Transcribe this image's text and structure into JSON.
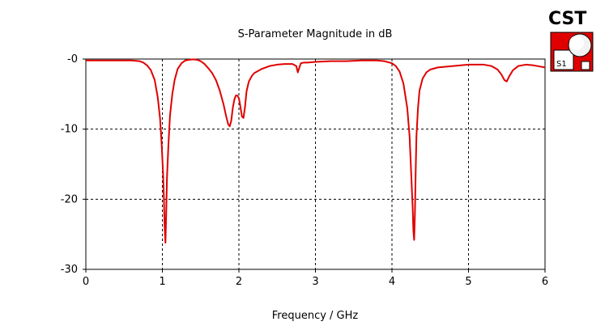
{
  "chart_data": {
    "type": "line",
    "title": "S-Parameter Magnitude in dB",
    "xlabel": "Frequency / GHz",
    "ylabel": "",
    "xlim": [
      0,
      6
    ],
    "ylim": [
      -30,
      0
    ],
    "grid": true,
    "x_ticks": [
      0,
      1,
      2,
      3,
      4,
      5,
      6
    ],
    "x_tick_labels": [
      "0",
      "1",
      "2",
      "3",
      "4",
      "5",
      "6"
    ],
    "y_ticks": [
      0,
      -10,
      -20,
      -30
    ],
    "y_tick_labels": [
      "-0",
      "-10",
      "-20",
      "-30"
    ],
    "series": [
      {
        "name": "S1,1",
        "color": "#e00000",
        "x": [
          0,
          0.2,
          0.4,
          0.6,
          0.7,
          0.75,
          0.8,
          0.85,
          0.9,
          0.94,
          0.97,
          0.99,
          1.01,
          1.02,
          1.03,
          1.04,
          1.05,
          1.06,
          1.08,
          1.1,
          1.13,
          1.16,
          1.2,
          1.25,
          1.3,
          1.35,
          1.4,
          1.45,
          1.5,
          1.55,
          1.6,
          1.65,
          1.7,
          1.75,
          1.8,
          1.83,
          1.86,
          1.88,
          1.9,
          1.92,
          1.94,
          1.96,
          1.98,
          2.0,
          2.02,
          2.04,
          2.06,
          2.08,
          2.1,
          2.13,
          2.17,
          2.2,
          2.3,
          2.4,
          2.5,
          2.6,
          2.7,
          2.75,
          2.77,
          2.79,
          2.81,
          2.85,
          2.9,
          3.0,
          3.2,
          3.4,
          3.6,
          3.8,
          3.9,
          4.0,
          4.05,
          4.1,
          4.15,
          4.2,
          4.23,
          4.25,
          4.27,
          4.28,
          4.29,
          4.3,
          4.31,
          4.32,
          4.34,
          4.36,
          4.4,
          4.45,
          4.5,
          4.6,
          4.8,
          5.0,
          5.2,
          5.3,
          5.38,
          5.43,
          5.47,
          5.5,
          5.53,
          5.58,
          5.65,
          5.75,
          5.85,
          6.0
        ],
        "values": [
          -0.2,
          -0.2,
          -0.2,
          -0.2,
          -0.3,
          -0.5,
          -0.9,
          -1.6,
          -3.0,
          -5.5,
          -8.5,
          -12.0,
          -16.5,
          -20.0,
          -24.0,
          -26.2,
          -22.0,
          -17.0,
          -12.0,
          -8.0,
          -5.0,
          -3.0,
          -1.4,
          -0.6,
          -0.2,
          -0.1,
          -0.05,
          -0.1,
          -0.3,
          -0.7,
          -1.3,
          -2.0,
          -3.0,
          -4.5,
          -6.5,
          -8.0,
          -9.3,
          -9.6,
          -8.8,
          -7.0,
          -5.8,
          -5.2,
          -5.2,
          -5.6,
          -6.8,
          -8.2,
          -8.4,
          -6.8,
          -4.6,
          -3.2,
          -2.4,
          -2.0,
          -1.4,
          -1.0,
          -0.8,
          -0.7,
          -0.7,
          -1.0,
          -1.9,
          -1.2,
          -0.6,
          -0.5,
          -0.5,
          -0.4,
          -0.3,
          -0.3,
          -0.2,
          -0.2,
          -0.3,
          -0.6,
          -1.0,
          -1.8,
          -3.5,
          -7.0,
          -11.0,
          -16.0,
          -21.0,
          -24.5,
          -25.8,
          -22.0,
          -16.0,
          -11.0,
          -7.0,
          -4.5,
          -2.8,
          -1.9,
          -1.5,
          -1.2,
          -1.0,
          -0.8,
          -0.8,
          -1.0,
          -1.5,
          -2.2,
          -3.0,
          -3.2,
          -2.5,
          -1.6,
          -1.0,
          -0.8,
          -0.9,
          -1.2
        ]
      }
    ]
  },
  "logo": {
    "text": "CST",
    "box_color": "#e00000",
    "label": "S1"
  }
}
